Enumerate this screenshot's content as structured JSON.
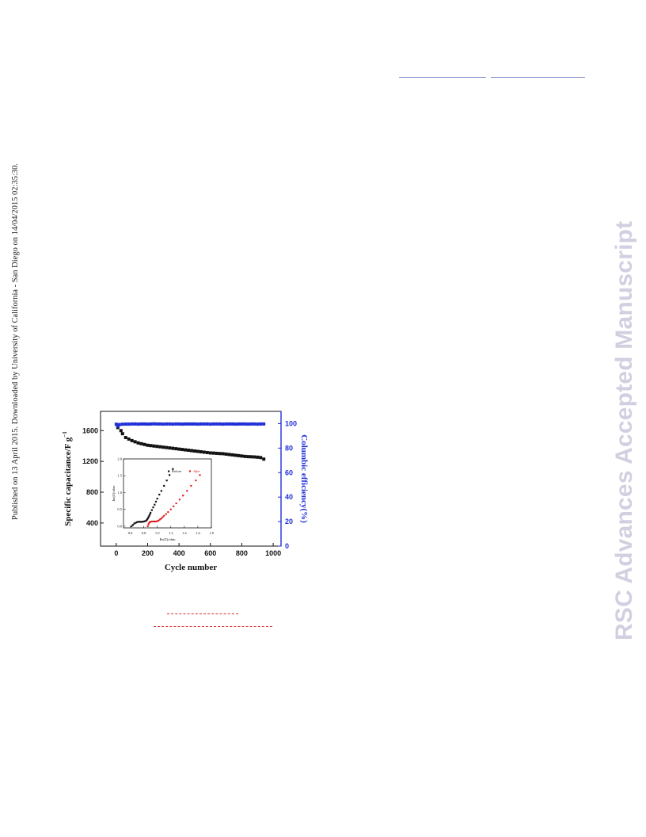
{
  "side_note": "Published on 13 April 2015. Downloaded by University of California - San Diego on 14/04/2015 02:35:30.",
  "watermark": "RSC Advances Accepted Manuscript",
  "colors": {
    "capacitance": "#111111",
    "efficiency": "#1f2fd6",
    "after": "#e01818",
    "axis_right": "#1f2fd6",
    "rule_top": "#7a86c8",
    "rule_bottom": "#d43030"
  },
  "chart_data": [
    {
      "type": "scatter",
      "xlabel": "Cycle number",
      "ylabel": "Specific capacitance/F g",
      "ylabel_superscript": "−1",
      "y2label": "Columbic efficiency(%)",
      "xlim": [
        -100,
        1050
      ],
      "ylim": [
        100,
        1850
      ],
      "y2lim": [
        0,
        110
      ],
      "xticks": [
        0,
        200,
        400,
        600,
        800,
        1000
      ],
      "yticks": [
        400,
        800,
        1200,
        1600
      ],
      "y2ticks": [
        0,
        20,
        40,
        60,
        80,
        100
      ],
      "grid": false,
      "series": [
        {
          "axis": "left",
          "x": [
            10,
            30,
            40,
            60,
            80,
            100,
            120,
            140,
            160,
            180,
            200,
            220,
            240,
            260,
            280,
            300,
            320,
            340,
            360,
            380,
            400,
            420,
            440,
            460,
            480,
            500,
            520,
            540,
            560,
            580,
            600,
            620,
            640,
            660,
            680,
            700,
            720,
            740,
            760,
            780,
            800,
            820,
            840,
            860,
            880,
            900,
            920,
            940
          ],
          "values": [
            1640,
            1600,
            1560,
            1510,
            1490,
            1470,
            1455,
            1440,
            1430,
            1420,
            1410,
            1405,
            1400,
            1395,
            1390,
            1385,
            1380,
            1375,
            1370,
            1365,
            1360,
            1355,
            1350,
            1345,
            1340,
            1335,
            1330,
            1325,
            1320,
            1315,
            1310,
            1308,
            1305,
            1302,
            1300,
            1295,
            1290,
            1285,
            1280,
            1275,
            1270,
            1265,
            1262,
            1260,
            1258,
            1255,
            1250,
            1230
          ]
        },
        {
          "axis": "right",
          "x": [
            0,
            10,
            20,
            40,
            60,
            80,
            100,
            120,
            140,
            160,
            180,
            200,
            220,
            240,
            260,
            280,
            300,
            320,
            340,
            360,
            380,
            400,
            420,
            440,
            460,
            480,
            500,
            520,
            540,
            560,
            580,
            600,
            620,
            640,
            660,
            680,
            700,
            720,
            740,
            760,
            780,
            800,
            820,
            840,
            860,
            880,
            900,
            920,
            940
          ],
          "values": [
            99.5,
            98.0,
            99.2,
            99.5,
            99.6,
            99.6,
            99.7,
            99.7,
            99.6,
            99.7,
            99.7,
            99.6,
            99.7,
            99.8,
            99.7,
            99.7,
            99.6,
            99.7,
            99.7,
            99.6,
            99.7,
            99.7,
            99.6,
            99.7,
            99.7,
            99.7,
            99.7,
            99.6,
            99.7,
            99.7,
            99.7,
            99.6,
            99.7,
            99.7,
            99.7,
            99.6,
            99.7,
            99.7,
            99.7,
            99.6,
            99.7,
            99.7,
            99.7,
            99.6,
            99.7,
            99.7,
            99.6,
            99.7,
            99.7
          ]
        }
      ]
    },
    {
      "type": "scatter",
      "xlabel": "Re(Z)/ohm",
      "ylabel": "Im(Z)/ohm",
      "xlim": [
        0.5,
        1.8
      ],
      "ylim": [
        -0.05,
        2.0
      ],
      "xticks": [
        0.6,
        0.8,
        1.0,
        1.2,
        1.4,
        1.6,
        1.8
      ],
      "yticks": [
        0.0,
        0.5,
        1.0,
        1.5,
        2.0
      ],
      "xtick_labels": [
        "0.6",
        "0.8",
        "1.0",
        "1.2",
        "1.4",
        "1.6",
        "1.8"
      ],
      "ytick_labels": [
        "0.0",
        "0.5",
        "1.0",
        "1.5",
        "2.0"
      ],
      "series": [
        {
          "name": "Before",
          "x": [
            0.62,
            0.64,
            0.66,
            0.68,
            0.7,
            0.72,
            0.74,
            0.76,
            0.78,
            0.8,
            0.82,
            0.84,
            0.85,
            0.86,
            0.87,
            0.88,
            0.89,
            0.9,
            0.92,
            0.94,
            0.96,
            0.98,
            1.0,
            1.03,
            1.06,
            1.1,
            1.14,
            1.18,
            1.23
          ],
          "values": [
            0.0,
            0.04,
            0.08,
            0.1,
            0.12,
            0.13,
            0.13,
            0.13,
            0.13,
            0.14,
            0.15,
            0.17,
            0.2,
            0.23,
            0.27,
            0.31,
            0.35,
            0.4,
            0.48,
            0.56,
            0.64,
            0.73,
            0.82,
            0.94,
            1.05,
            1.2,
            1.36,
            1.52,
            1.7
          ]
        },
        {
          "name": "After",
          "x": [
            0.86,
            0.87,
            0.88,
            0.89,
            0.9,
            0.92,
            0.94,
            0.96,
            0.98,
            1.0,
            1.02,
            1.04,
            1.06,
            1.08,
            1.1,
            1.13,
            1.16,
            1.2,
            1.24,
            1.28,
            1.33,
            1.38,
            1.44,
            1.5,
            1.57,
            1.63
          ],
          "values": [
            0.0,
            0.06,
            0.1,
            0.12,
            0.13,
            0.14,
            0.14,
            0.14,
            0.14,
            0.15,
            0.17,
            0.2,
            0.23,
            0.27,
            0.31,
            0.36,
            0.42,
            0.5,
            0.59,
            0.68,
            0.79,
            0.91,
            1.05,
            1.2,
            1.36,
            1.52
          ]
        }
      ]
    }
  ]
}
